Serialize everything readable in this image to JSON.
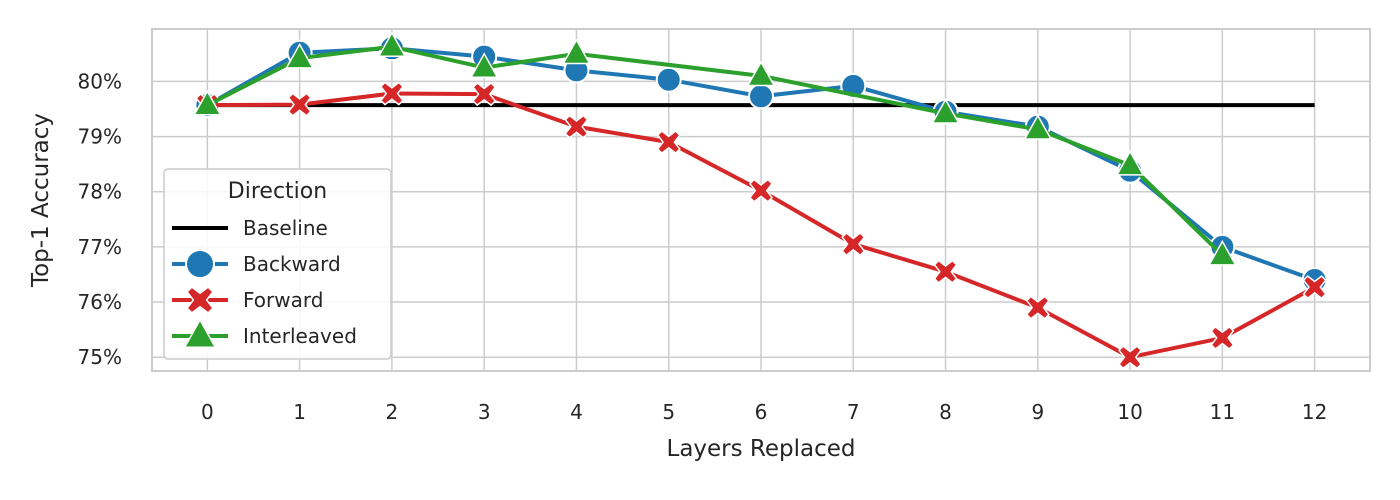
{
  "chart_data": {
    "type": "line",
    "xlabel": "Layers Replaced",
    "ylabel": "Top-1 Accuracy",
    "x": [
      0,
      1,
      2,
      3,
      4,
      5,
      6,
      7,
      8,
      9,
      10,
      11,
      12
    ],
    "xticks": [
      "0",
      "1",
      "2",
      "3",
      "4",
      "5",
      "6",
      "7",
      "8",
      "9",
      "10",
      "11",
      "12"
    ],
    "yticks": [
      75,
      76,
      77,
      78,
      79,
      80
    ],
    "ytick_labels": [
      "75%",
      "76%",
      "77%",
      "78%",
      "79%",
      "80%"
    ],
    "xlim": [
      -0.6,
      12.6
    ],
    "ylim": [
      74.75,
      80.95
    ],
    "grid": true,
    "legend": {
      "title": "Direction",
      "placement": "lower-left"
    },
    "series": [
      {
        "name": "Baseline",
        "color": "#000000",
        "marker": "none",
        "x": [
          0,
          12
        ],
        "values": [
          79.57,
          79.57
        ]
      },
      {
        "name": "Backward",
        "color": "#1f77b4",
        "marker": "circle",
        "x": [
          0,
          1,
          2,
          3,
          4,
          5,
          6,
          7,
          8,
          9,
          10,
          11,
          12
        ],
        "values": [
          79.57,
          80.52,
          80.6,
          80.45,
          80.2,
          80.03,
          79.73,
          79.92,
          79.45,
          79.18,
          78.38,
          77.0,
          76.4
        ]
      },
      {
        "name": "Forward",
        "color": "#d62728",
        "marker": "x",
        "x": [
          0,
          1,
          2,
          3,
          4,
          5,
          6,
          7,
          8,
          9,
          10,
          11,
          12
        ],
        "values": [
          79.57,
          79.58,
          79.78,
          79.77,
          79.18,
          78.9,
          78.02,
          77.05,
          76.55,
          75.9,
          75.0,
          75.35,
          76.27
        ]
      },
      {
        "name": "Interleaved",
        "color": "#2ca02c",
        "marker": "triangle",
        "x": [
          0,
          1,
          2,
          3,
          4,
          5,
          6,
          7,
          8,
          9,
          10,
          11
        ],
        "values": [
          79.57,
          80.42,
          80.63,
          80.25,
          80.5,
          null,
          80.1,
          null,
          79.42,
          79.13,
          78.48,
          76.85
        ]
      }
    ]
  }
}
